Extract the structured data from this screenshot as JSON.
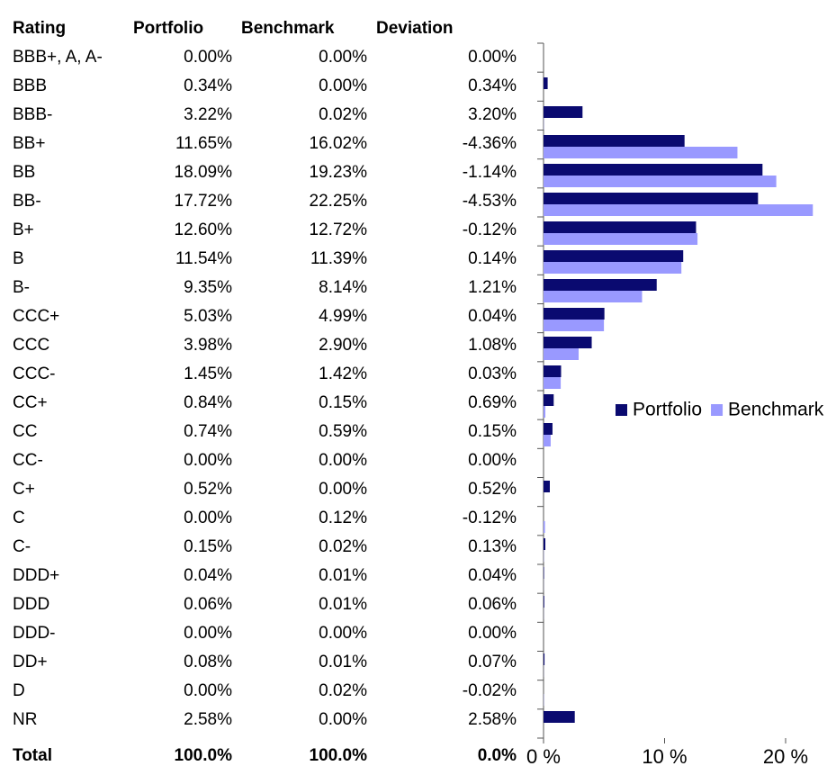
{
  "chart_data": {
    "type": "bar",
    "orientation": "horizontal",
    "category_label": "Rating",
    "categories": [
      "BBB+, A, A-",
      "BBB",
      "BBB-",
      "BB+",
      "BB",
      "BB-",
      "B+",
      "B",
      "B-",
      "CCC+",
      "CCC",
      "CCC-",
      "CC+",
      "CC",
      "CC-",
      "C+",
      "C",
      "C-",
      "DDD+",
      "DDD",
      "DDD-",
      "DD+",
      "D",
      "NR"
    ],
    "series": [
      {
        "name": "Portfolio",
        "color": "#0a0a70",
        "values": [
          0,
          0.34,
          3.22,
          11.65,
          18.09,
          17.72,
          12.6,
          11.54,
          9.35,
          5.03,
          3.98,
          1.45,
          0.84,
          0.74,
          0,
          0.52,
          0,
          0.15,
          0.04,
          0.06,
          0,
          0.08,
          0,
          2.58
        ],
        "value_labels": [
          "0.00%",
          "0.34%",
          "3.22%",
          "11.65%",
          "18.09%",
          "17.72%",
          "12.60%",
          "11.54%",
          "9.35%",
          "5.03%",
          "3.98%",
          "1.45%",
          "0.84%",
          "0.74%",
          "0.00%",
          "0.52%",
          "0.00%",
          "0.15%",
          "0.04%",
          "0.06%",
          "0.00%",
          "0.08%",
          "0.00%",
          "2.58%"
        ]
      },
      {
        "name": "Benchmark",
        "color": "#9999ff",
        "values": [
          0,
          0,
          0.02,
          16.02,
          19.23,
          22.25,
          12.72,
          11.39,
          8.14,
          4.99,
          2.9,
          1.42,
          0.15,
          0.59,
          0,
          0,
          0.12,
          0.02,
          0.01,
          0.01,
          0,
          0.01,
          0.02,
          0
        ],
        "value_labels": [
          "0.00%",
          "0.00%",
          "0.02%",
          "16.02%",
          "19.23%",
          "22.25%",
          "12.72%",
          "11.39%",
          "8.14%",
          "4.99%",
          "2.90%",
          "1.42%",
          "0.15%",
          "0.59%",
          "0.00%",
          "0.00%",
          "0.12%",
          "0.02%",
          "0.01%",
          "0.01%",
          "0.00%",
          "0.01%",
          "0.02%",
          "0.00%"
        ]
      }
    ],
    "deviation": {
      "name": "Deviation",
      "values": [
        0,
        0.34,
        3.2,
        -4.36,
        -1.14,
        -4.53,
        -0.12,
        0.14,
        1.21,
        0.04,
        1.08,
        0.03,
        0.69,
        0.15,
        0,
        0.52,
        -0.12,
        0.13,
        0.04,
        0.06,
        0,
        0.07,
        -0.02,
        2.58
      ],
      "value_labels": [
        "0.00%",
        "0.34%",
        "3.20%",
        "-4.36%",
        "-1.14%",
        "-4.53%",
        "-0.12%",
        "0.14%",
        "1.21%",
        "0.04%",
        "1.08%",
        "0.03%",
        "0.69%",
        "0.15%",
        "0.00%",
        "0.52%",
        "-0.12%",
        "0.13%",
        "0.04%",
        "0.06%",
        "0.00%",
        "0.07%",
        "-0.02%",
        "2.58%"
      ]
    },
    "total": {
      "label": "Total",
      "values": [
        "100.0%",
        "100.0%",
        "0.0%"
      ]
    },
    "xlim": [
      0,
      24
    ],
    "xticks": [
      {
        "value": 0,
        "label": "0 %"
      },
      {
        "value": 10,
        "label": "10 %"
      },
      {
        "value": 20,
        "label": "20 %"
      }
    ],
    "legend": "right"
  }
}
